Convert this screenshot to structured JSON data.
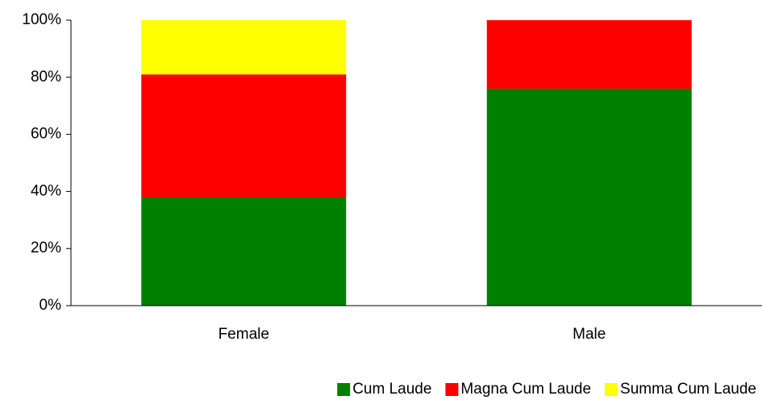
{
  "chart_data": {
    "type": "stacked_bar",
    "categories": [
      "Female",
      "Male"
    ],
    "series": [
      {
        "name": "Cum Laude",
        "color": "#008000",
        "values": [
          38,
          76
        ]
      },
      {
        "name": "Magna Cum Laude",
        "color": "#ff0000",
        "values": [
          43,
          24
        ]
      },
      {
        "name": "Summa Cum Laude",
        "color": "#ffff00",
        "values": [
          19,
          0
        ]
      }
    ],
    "ylim": [
      0,
      100
    ],
    "yticks": [
      {
        "value": 0,
        "label": "0%"
      },
      {
        "value": 20,
        "label": "20%"
      },
      {
        "value": 40,
        "label": "40%"
      },
      {
        "value": 60,
        "label": "60%"
      },
      {
        "value": 80,
        "label": "80%"
      },
      {
        "value": 100,
        "label": "100%"
      }
    ],
    "grid": false,
    "legend": "bottom-right"
  }
}
